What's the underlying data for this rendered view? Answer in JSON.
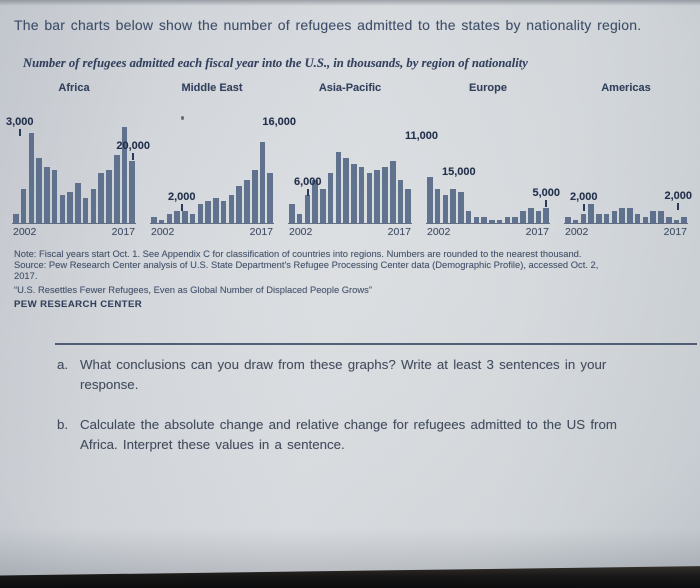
{
  "intro": {
    "text": "The bar charts below show the number of refugees admitted to the states by nationality region."
  },
  "chart_data": {
    "type": "bar",
    "title": "Number of refugees admitted each fiscal year into the U.S., in thousands, by region of nationality",
    "unit": "thousands",
    "years": [
      2002,
      2003,
      2004,
      2005,
      2006,
      2007,
      2008,
      2009,
      2010,
      2011,
      2012,
      2013,
      2014,
      2015,
      2016,
      2017
    ],
    "x_axis_labels": [
      "2002",
      "2017"
    ],
    "ylim": [
      0,
      32
    ],
    "grid": false,
    "legend": "none",
    "panels": [
      {
        "region": "Africa",
        "values": [
          3,
          11,
          29,
          21,
          18,
          17,
          9,
          10,
          13,
          8,
          11,
          16,
          17,
          22,
          31,
          20
        ],
        "callouts": [
          {
            "label": "3,000",
            "year": 2002,
            "value": 3
          },
          {
            "label": "20,000",
            "year": 2017,
            "value": 20
          }
        ]
      },
      {
        "region": "Middle East",
        "values": [
          2,
          1,
          3,
          4,
          4,
          3,
          6,
          7,
          8,
          7,
          9,
          12,
          14,
          17,
          26,
          16
        ],
        "callouts": [
          {
            "label": "2,000",
            "year": 2002,
            "value": 2
          },
          {
            "label": "16,000",
            "year": 2017,
            "value": 16
          }
        ]
      },
      {
        "region": "Asia-Pacific",
        "values": [
          6,
          3,
          9,
          14,
          11,
          16,
          23,
          21,
          19,
          18,
          16,
          17,
          18,
          20,
          14,
          11
        ],
        "callouts": [
          {
            "label": "6,000",
            "year": 2002,
            "value": 6
          },
          {
            "label": "11,000",
            "year": 2017,
            "value": 11
          }
        ]
      },
      {
        "region": "Europe",
        "values": [
          15,
          11,
          9,
          11,
          10,
          4,
          2,
          2,
          1,
          1,
          2,
          2,
          4,
          5,
          4,
          5
        ],
        "callouts": [
          {
            "label": "15,000",
            "year": 2002,
            "value": 15
          },
          {
            "label": "5,000",
            "year": 2017,
            "value": 5
          }
        ]
      },
      {
        "region": "Americas",
        "values": [
          2,
          1,
          3,
          6,
          3,
          3,
          4,
          5,
          5,
          3,
          2,
          4,
          4,
          2,
          1,
          2
        ],
        "callouts": [
          {
            "label": "2,000",
            "year": 2002,
            "value": 2
          },
          {
            "label": "2,000",
            "year": 2017,
            "value": 2
          }
        ]
      }
    ]
  },
  "notes": {
    "line1": "Note: Fiscal years start Oct. 1. See Appendix C for classification of countries into regions. Numbers are rounded to the nearest thousand.",
    "line2": "Source: Pew Research Center analysis of U.S. State Department's Refugee Processing Center data (Demographic Profile), accessed Oct. 2,",
    "line3": "2017.",
    "report_title": "“U.S. Resettles Fewer Refugees, Even as Global Number of Displaced People Grows”",
    "brand": "PEW RESEARCH CENTER"
  },
  "questions": {
    "a": {
      "label": "a.",
      "line1": "What conclusions can you draw from these graphs? Write at least 3 sentences in your",
      "line2": "response."
    },
    "b": {
      "label": "b.",
      "line1": "Calculate the absolute change and relative change for refugees admitted to the US from",
      "line2": "Africa. Interpret these values in a sentence."
    }
  },
  "colors": {
    "bar": "#5b6e8b",
    "axis": "#5d6880",
    "ink": "#33425e"
  }
}
